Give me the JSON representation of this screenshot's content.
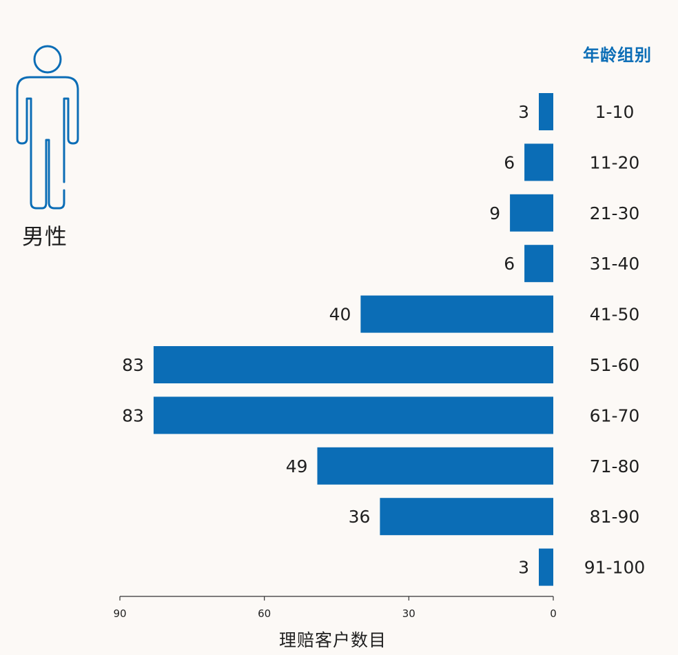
{
  "header": {
    "gender_label": "男性",
    "legend_title": "年龄组别"
  },
  "icons": {
    "figure": "male-person-icon"
  },
  "colors": {
    "bar": "#0b6db6",
    "accent": "#0b6db6",
    "text": "#1f1f1f",
    "axis": "#333333",
    "background": "#fcf9f6"
  },
  "chart_data": {
    "type": "bar",
    "orientation": "horizontal",
    "direction": "right-to-left",
    "categories": [
      "1-10",
      "11-20",
      "21-30",
      "31-40",
      "41-50",
      "51-60",
      "61-70",
      "71-80",
      "81-90",
      "91-100"
    ],
    "values": [
      3,
      6,
      9,
      6,
      40,
      83,
      83,
      49,
      36,
      3
    ],
    "xlabel": "理赔客户数目",
    "xlim": [
      0,
      90
    ],
    "xticks": [
      90,
      60,
      30,
      0
    ],
    "category_axis_title": "年龄组别",
    "grid": false,
    "data_labels": true
  }
}
